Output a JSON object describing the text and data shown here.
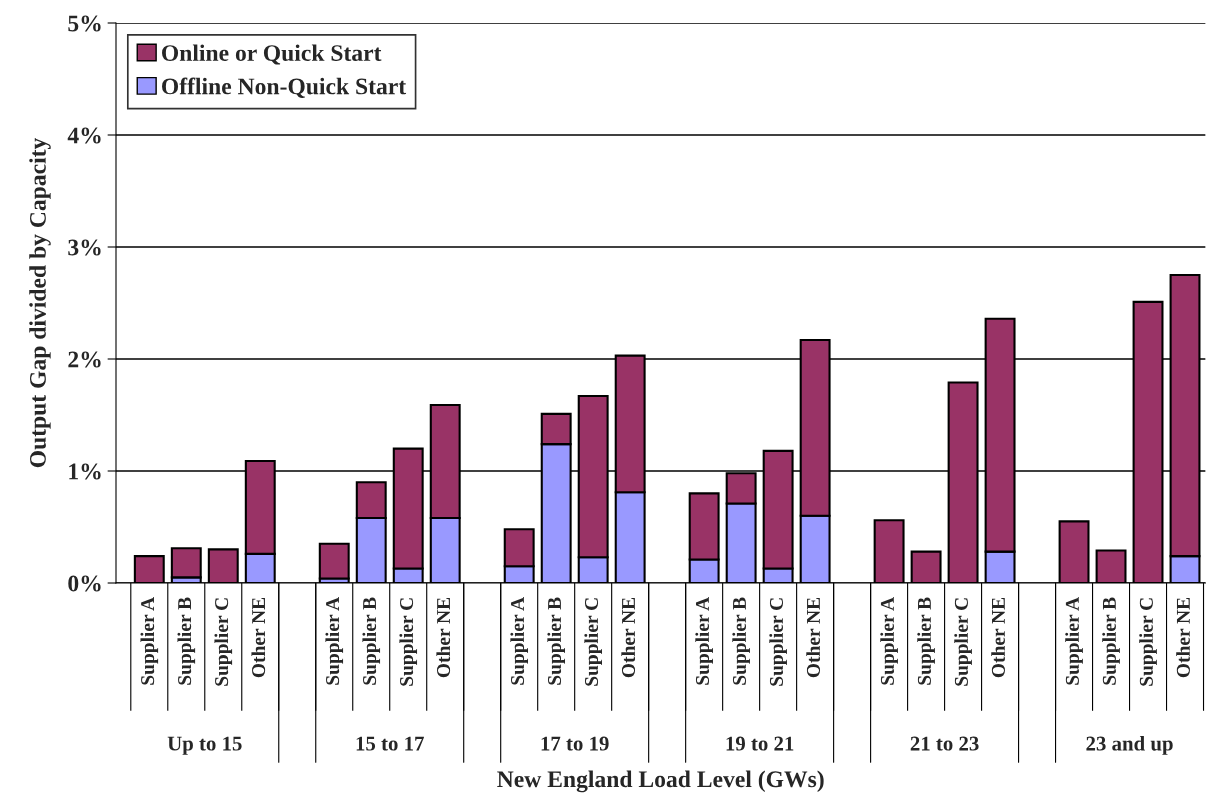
{
  "chart_data": {
    "type": "bar",
    "stacked": true,
    "xlabel": "New England Load Level (GWs)",
    "ylabel": "Output Gap divided by Capacity",
    "categories": [
      "Supplier A",
      "Supplier B",
      "Supplier C",
      "Other NE",
      null,
      "Supplier A",
      "Supplier B",
      "Supplier C",
      "Other NE",
      null,
      "Supplier A",
      "Supplier B",
      "Supplier C",
      "Other NE",
      null,
      "Supplier A",
      "Supplier B",
      "Supplier C",
      "Other NE",
      null,
      "Supplier A",
      "Supplier B",
      "Supplier C",
      "Other NE",
      null,
      "Supplier A",
      "Supplier B",
      "Supplier C",
      "Other NE"
    ],
    "series": [
      {
        "name": "Offline Non-Quick Start",
        "color": "#9999ff",
        "values": [
          0,
          0.05,
          null,
          0.26,
          null,
          0.04,
          0.58,
          0.13,
          0.58,
          null,
          0.15,
          1.24,
          0.23,
          0.81,
          null,
          0.21,
          0.71,
          0.13,
          0.6,
          null,
          null,
          0,
          0,
          0.28,
          null,
          0,
          0,
          0,
          0.24
        ]
      },
      {
        "name": "Online or Quick Start",
        "color": "#993366",
        "values": [
          0.24,
          0.26,
          0.3,
          0.83,
          null,
          0.31,
          0.32,
          1.07,
          1.01,
          null,
          0.33,
          0.27,
          1.44,
          1.22,
          null,
          0.59,
          0.27,
          1.05,
          1.57,
          null,
          0.56,
          0.28,
          1.79,
          2.08,
          null,
          0.55,
          0.29,
          2.51,
          2.51
        ]
      }
    ],
    "annotations": [
      "Up to 15",
      "15 to 17",
      "17 to 19",
      "19 to 21",
      "21 to 23",
      "23 and up"
    ],
    "ylim": [
      0,
      5
    ],
    "yticks": [
      {
        "value": 0,
        "label": "0%"
      },
      {
        "value": 1,
        "label": "1%"
      },
      {
        "value": 2,
        "label": "2%"
      },
      {
        "value": 3,
        "label": "3%"
      },
      {
        "value": 4,
        "label": "4%"
      },
      {
        "value": 5,
        "label": "5%"
      }
    ],
    "grid": "y",
    "legend": "top left"
  }
}
